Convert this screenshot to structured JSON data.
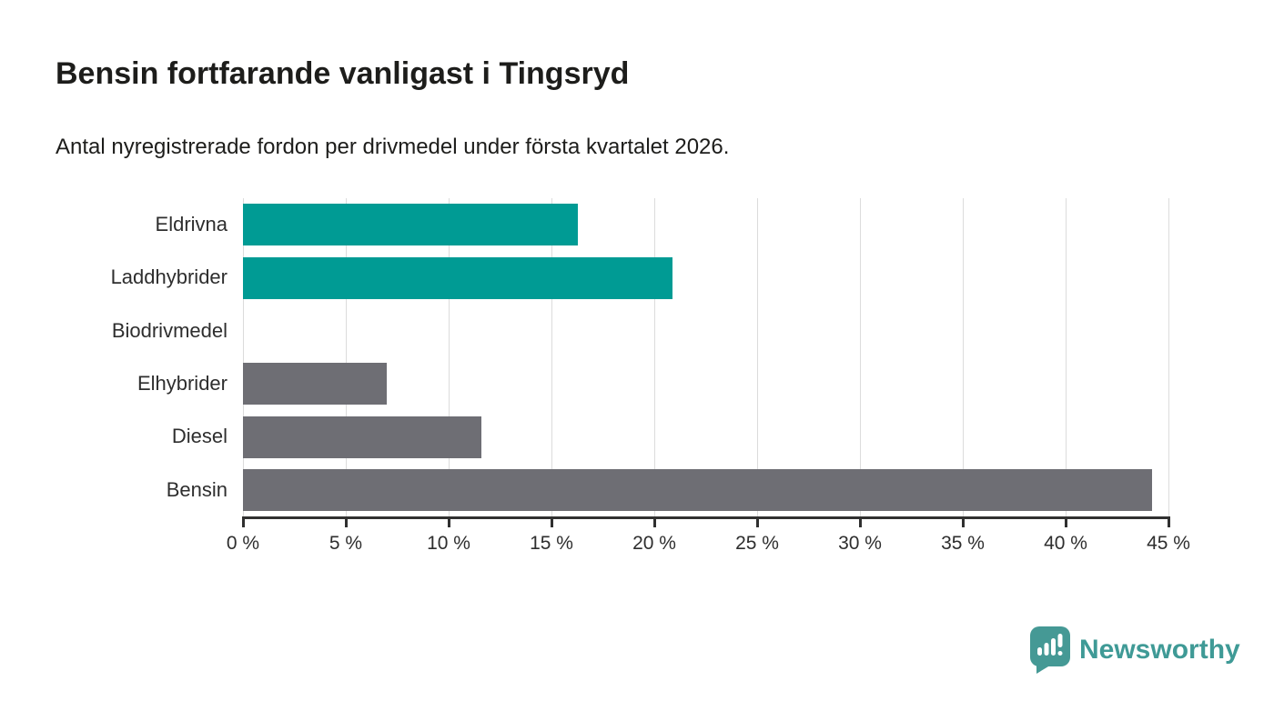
{
  "page": {
    "title": "Bensin fortfarande vanligast i Tingsryd",
    "subtitle": "Antal nyregistrerade fordon per drivmedel under första kvartalet 2026."
  },
  "chart_data": {
    "type": "bar",
    "orientation": "horizontal",
    "title": "Bensin fortfarande vanligast i Tingsryd",
    "subtitle": "Antal nyregistrerade fordon per drivmedel under första kvartalet 2026.",
    "categories": [
      "Eldrivna",
      "Laddhybrider",
      "Biodrivmedel",
      "Elhybrider",
      "Diesel",
      "Bensin"
    ],
    "values": [
      16.3,
      20.9,
      0,
      7.0,
      11.6,
      44.2
    ],
    "unit": "%",
    "xlim": [
      0,
      45
    ],
    "tick_step": 5,
    "tick_labels": [
      "0 %",
      "5 %",
      "10 %",
      "15 %",
      "20 %",
      "25 %",
      "30 %",
      "35 %",
      "40 %",
      "45 %"
    ],
    "grid": true,
    "legend": "none",
    "bar_colors": [
      "#009b94",
      "#009b94",
      "#009b94",
      "#6e6e74",
      "#6e6e74",
      "#6e6e74"
    ],
    "colors": {
      "teal": "#009b94",
      "gray": "#6e6e74",
      "gridline": "#dcdcdc",
      "axis": "#303030",
      "text": "#1d1d1b"
    }
  },
  "branding": {
    "name": "Newsworthy",
    "logo_color": "#459995",
    "logo_icon": "newsworthy-speech-bubble-bar-chart-icon"
  }
}
